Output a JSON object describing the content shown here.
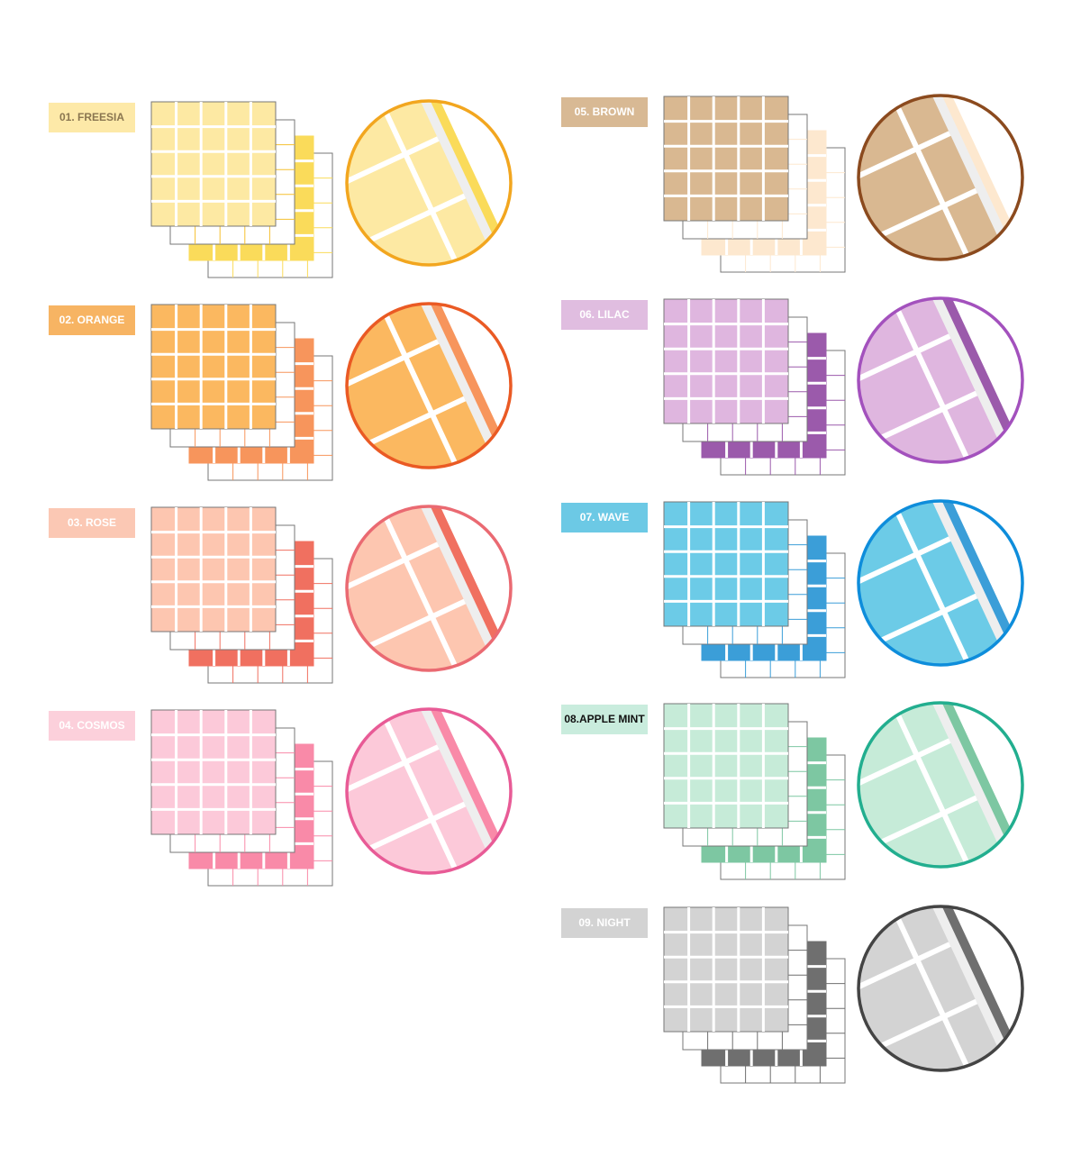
{
  "items": [
    {
      "label": "01. FREESIA"
    },
    {
      "label": "02. ORANGE"
    },
    {
      "label": "03. ROSE"
    },
    {
      "label": "04. COSMOS"
    },
    {
      "label": "05. BROWN"
    },
    {
      "label": "06. LILAC"
    },
    {
      "label": "07. WAVE"
    },
    {
      "label": "08.APPLE MINT"
    },
    {
      "label": "09. NIGHT"
    }
  ]
}
